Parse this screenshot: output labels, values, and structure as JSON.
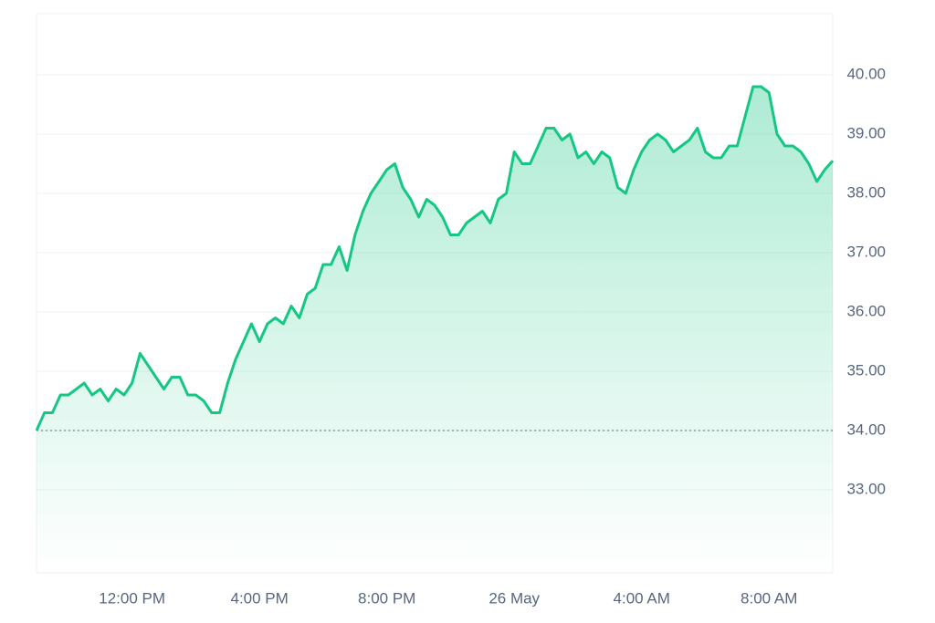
{
  "chart_data": {
    "type": "line",
    "categories": [
      null,
      null,
      null,
      null,
      null,
      null,
      null,
      null,
      null,
      null,
      null,
      null,
      "12:00 PM",
      null,
      null,
      null,
      null,
      null,
      null,
      null,
      null,
      null,
      null,
      null,
      null,
      null,
      null,
      null,
      "4:00 PM",
      null,
      null,
      null,
      null,
      null,
      null,
      null,
      null,
      null,
      null,
      null,
      null,
      null,
      null,
      null,
      "8:00 PM",
      null,
      null,
      null,
      null,
      null,
      null,
      null,
      null,
      null,
      null,
      null,
      null,
      null,
      null,
      null,
      "26 May",
      null,
      null,
      null,
      null,
      null,
      null,
      null,
      null,
      null,
      null,
      null,
      null,
      null,
      null,
      null,
      "4:00 AM",
      null,
      null,
      null,
      null,
      null,
      null,
      null,
      null,
      null,
      null,
      null,
      null,
      null,
      null,
      null,
      "8:00 AM",
      null,
      null,
      null,
      null,
      null,
      null,
      null,
      null
    ],
    "series": [
      {
        "color": "#16c784",
        "values": [
          34.0,
          34.3,
          34.3,
          34.6,
          34.6,
          34.7,
          34.8,
          34.6,
          34.7,
          34.5,
          34.7,
          34.6,
          34.8,
          35.3,
          35.1,
          34.9,
          34.7,
          34.9,
          34.9,
          34.6,
          34.6,
          34.5,
          34.3,
          34.3,
          34.8,
          35.2,
          35.5,
          35.8,
          35.5,
          35.8,
          35.9,
          35.8,
          36.1,
          35.9,
          36.3,
          36.4,
          36.8,
          36.8,
          37.1,
          36.7,
          37.3,
          37.7,
          38.0,
          38.2,
          38.4,
          38.5,
          38.1,
          37.9,
          37.6,
          37.9,
          37.8,
          37.6,
          37.3,
          37.3,
          37.5,
          37.6,
          37.7,
          37.5,
          37.9,
          38.0,
          38.7,
          38.5,
          38.5,
          38.8,
          39.1,
          39.1,
          38.9,
          39.0,
          38.6,
          38.7,
          38.5,
          38.7,
          38.6,
          38.1,
          38.0,
          38.4,
          38.7,
          38.9,
          39.0,
          38.9,
          38.7,
          38.8,
          38.9,
          39.1,
          38.7,
          38.6,
          38.6,
          38.8,
          38.8,
          39.3,
          39.8,
          39.8,
          39.7,
          39.0,
          38.8,
          38.8,
          38.7,
          38.5,
          38.2,
          38.4,
          38.55
        ]
      }
    ],
    "reference_line": 34,
    "ylim": [
      31.6,
      41.03
    ],
    "yticks": [
      {
        "value": 33,
        "label": "33.00"
      },
      {
        "value": 34,
        "label": "34.00"
      },
      {
        "value": 35,
        "label": "35.00"
      },
      {
        "value": 36,
        "label": "36.00"
      },
      {
        "value": 37,
        "label": "37.00"
      },
      {
        "value": 38,
        "label": "38.00"
      },
      {
        "value": 39,
        "label": "39.00"
      },
      {
        "value": 40,
        "label": "40.00"
      }
    ],
    "grid": true
  }
}
